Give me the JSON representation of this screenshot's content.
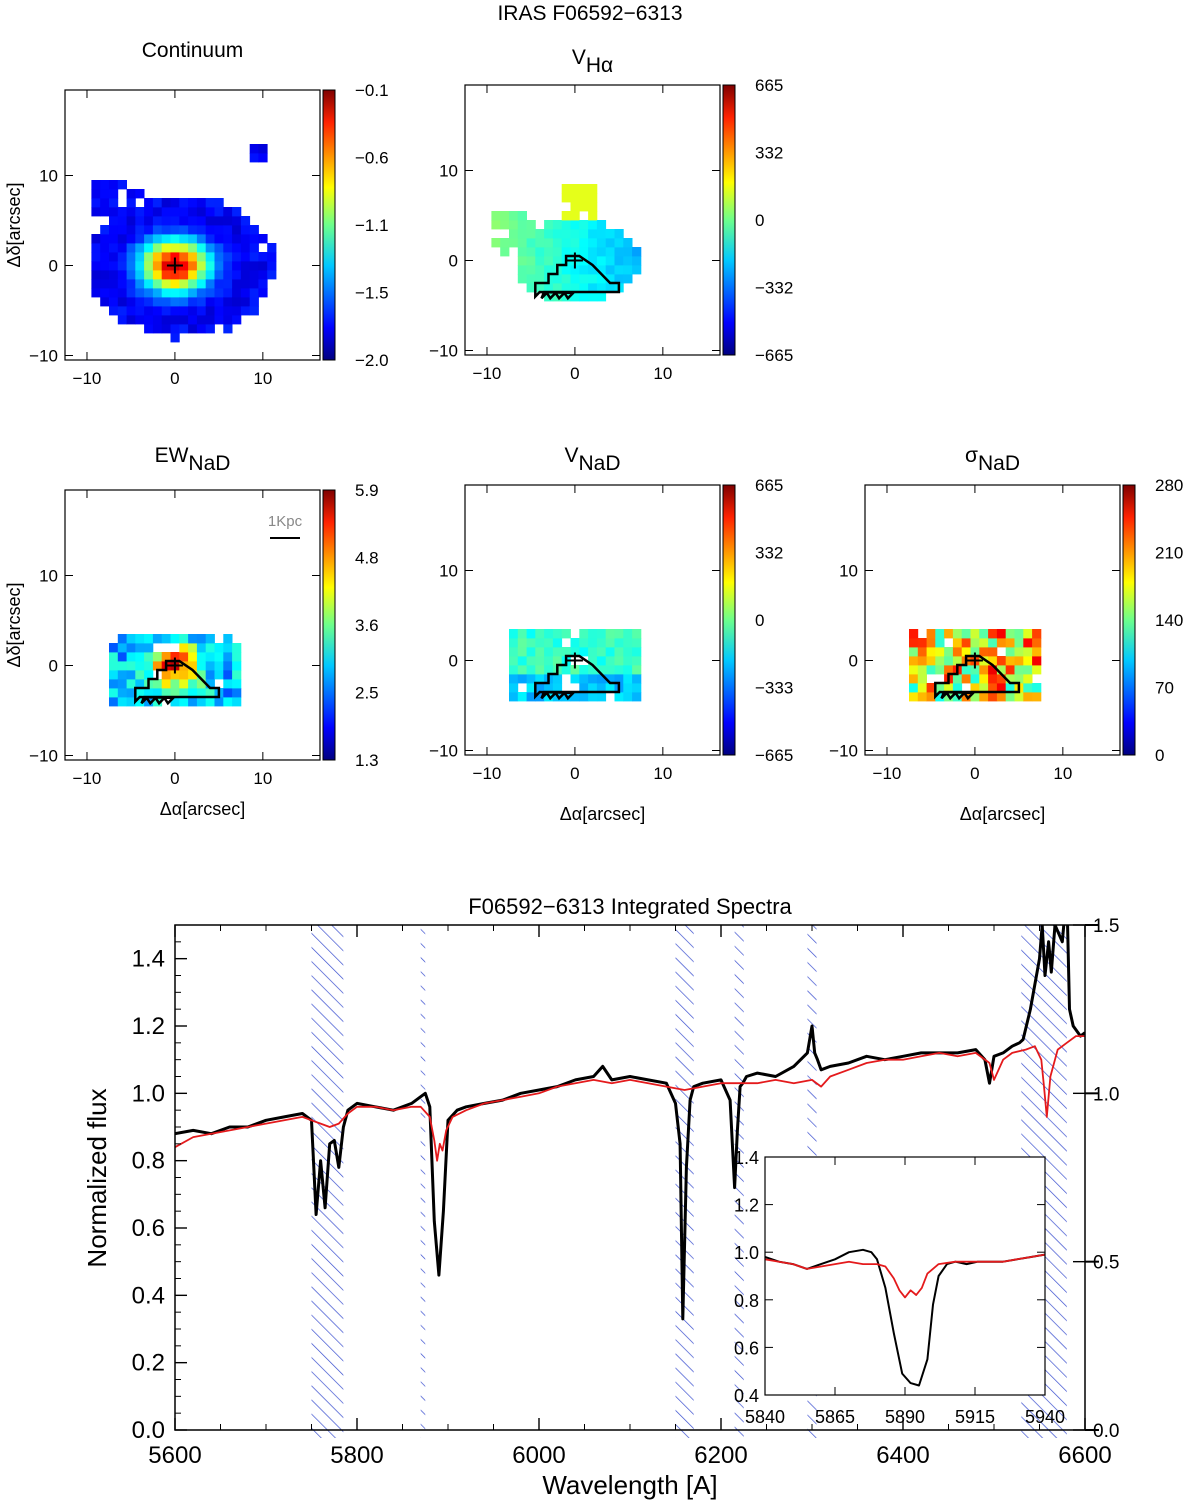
{
  "figure": {
    "title": "IRAS F06592−6313"
  },
  "colors": {
    "observed_line": "#000000",
    "model_line": "#e41a1c",
    "hatch": "#3a4fcf",
    "contour": "#000000",
    "colormap": "jet"
  },
  "maps": [
    {
      "key": "continuum",
      "title_main": "Continuum",
      "title_sub": "",
      "cbar_ticks": [
        "−0.1",
        "−0.6",
        "−1.1",
        "−1.5",
        "−2.0"
      ],
      "xticks": [
        "−10",
        "0",
        "10"
      ],
      "yticks": [
        "10",
        "0",
        "−10"
      ],
      "ylabel": "Δδ[arcsec]",
      "xlabel": "",
      "has_contour": false,
      "has_scalebar": false
    },
    {
      "key": "v_halpha",
      "title_main": "V",
      "title_sub": "Hα",
      "cbar_ticks": [
        "665",
        "332",
        "0",
        "−332",
        "−665"
      ],
      "xticks": [
        "−10",
        "0",
        "10"
      ],
      "yticks": [
        "10",
        "0",
        "−10"
      ],
      "ylabel": "",
      "xlabel": "",
      "has_contour": true,
      "has_scalebar": false
    },
    {
      "key": "ew_nad",
      "title_main": "EW",
      "title_sub": "NaD",
      "cbar_ticks": [
        "5.9",
        "4.8",
        "3.6",
        "2.5",
        "1.3"
      ],
      "xticks": [
        "−10",
        "0",
        "10"
      ],
      "yticks": [
        "10",
        "0",
        "−10"
      ],
      "ylabel": "Δδ[arcsec]",
      "xlabel": "Δα[arcsec]",
      "has_contour": true,
      "has_scalebar": true,
      "scalebar_label": "1Kpc"
    },
    {
      "key": "v_nad",
      "title_main": "V",
      "title_sub": "NaD",
      "cbar_ticks": [
        "665",
        "332",
        "0",
        "−333",
        "−665"
      ],
      "xticks": [
        "−10",
        "0",
        "10"
      ],
      "yticks": [
        "10",
        "0",
        "−10"
      ],
      "ylabel": "",
      "xlabel": "Δα[arcsec]",
      "has_contour": true,
      "has_scalebar": false
    },
    {
      "key": "sigma_nad",
      "title_main": "σ",
      "title_sub": "NaD",
      "cbar_ticks": [
        "280",
        "210",
        "140",
        "70",
        "0"
      ],
      "xticks": [
        "−10",
        "0",
        "10"
      ],
      "yticks": [
        "10",
        "0",
        "−10"
      ],
      "ylabel": "",
      "xlabel": "Δα[arcsec]",
      "has_contour": true,
      "has_scalebar": false
    }
  ],
  "chart_data": [
    {
      "type": "line",
      "title": "F06592−6313 Integrated Spectra",
      "xlabel": "Wavelength [A]",
      "ylabel": "Normalized flux",
      "xlim": [
        5600,
        6600
      ],
      "ylim": [
        0.0,
        1.5
      ],
      "right_ylim": [
        0.0,
        1.5
      ],
      "x_ticks": [
        "5600",
        "5800",
        "6000",
        "6200",
        "6400",
        "6600"
      ],
      "y_ticks": [
        "0.0",
        "0.2",
        "0.4",
        "0.6",
        "0.8",
        "1.0",
        "1.2",
        "1.4"
      ],
      "right_y_ticks": [
        "0.0",
        "0.5",
        "1.0",
        "1.5"
      ],
      "masked_regions": [
        [
          5750,
          5785
        ],
        [
          5870,
          5875
        ],
        [
          6150,
          6170
        ],
        [
          6215,
          6225
        ],
        [
          6295,
          6305
        ],
        [
          6530,
          6580
        ]
      ],
      "series": [
        {
          "x": [
            5600,
            5620,
            5640,
            5660,
            5680,
            5700,
            5720,
            5740,
            5750,
            5755,
            5760,
            5765,
            5770,
            5775,
            5780,
            5785,
            5790,
            5800,
            5820,
            5840,
            5860,
            5870,
            5875,
            5880,
            5885,
            5890,
            5895,
            5900,
            5910,
            5920,
            5940,
            5960,
            5980,
            6000,
            6020,
            6040,
            6060,
            6070,
            6080,
            6100,
            6120,
            6140,
            6150,
            6155,
            6158,
            6162,
            6166,
            6170,
            6180,
            6200,
            6210,
            6215,
            6218,
            6221,
            6224,
            6228,
            6240,
            6260,
            6280,
            6295,
            6300,
            6303,
            6306,
            6310,
            6320,
            6340,
            6360,
            6380,
            6400,
            6420,
            6440,
            6460,
            6480,
            6490,
            6495,
            6500,
            6510,
            6520,
            6528,
            6532,
            6540,
            6550,
            6553,
            6556,
            6560,
            6563,
            6567,
            6575,
            6580,
            6583,
            6587,
            6595,
            6600
          ],
          "y": [
            0.88,
            0.89,
            0.88,
            0.9,
            0.9,
            0.92,
            0.93,
            0.94,
            0.92,
            0.64,
            0.8,
            0.66,
            0.85,
            0.86,
            0.78,
            0.9,
            0.95,
            0.97,
            0.96,
            0.95,
            0.97,
            0.99,
            1.0,
            0.96,
            0.62,
            0.46,
            0.65,
            0.92,
            0.95,
            0.96,
            0.97,
            0.98,
            1.0,
            1.01,
            1.02,
            1.04,
            1.05,
            1.08,
            1.04,
            1.05,
            1.04,
            1.03,
            0.97,
            0.85,
            0.33,
            0.78,
            0.98,
            1.02,
            1.03,
            1.04,
            0.98,
            0.72,
            0.89,
            1.02,
            1.03,
            1.05,
            1.06,
            1.05,
            1.08,
            1.12,
            1.2,
            1.12,
            1.1,
            1.07,
            1.08,
            1.09,
            1.11,
            1.1,
            1.11,
            1.12,
            1.12,
            1.12,
            1.13,
            1.1,
            1.03,
            1.11,
            1.12,
            1.14,
            1.15,
            1.16,
            1.25,
            1.4,
            1.5,
            1.35,
            1.45,
            1.36,
            1.5,
            1.45,
            1.6,
            1.25,
            1.2,
            1.17,
            1.18
          ]
        },
        {
          "x": [
            5600,
            5620,
            5640,
            5660,
            5680,
            5700,
            5720,
            5740,
            5750,
            5760,
            5770,
            5780,
            5790,
            5800,
            5820,
            5840,
            5860,
            5870,
            5880,
            5885,
            5888,
            5891,
            5894,
            5898,
            5905,
            5920,
            5940,
            5960,
            5980,
            6000,
            6020,
            6040,
            6060,
            6080,
            6100,
            6120,
            6140,
            6160,
            6180,
            6200,
            6220,
            6240,
            6260,
            6280,
            6300,
            6310,
            6320,
            6340,
            6360,
            6380,
            6400,
            6420,
            6440,
            6460,
            6480,
            6495,
            6500,
            6510,
            6520,
            6535,
            6545,
            6552,
            6555,
            6558,
            6562,
            6570,
            6580,
            6590,
            6600
          ],
          "y": [
            0.84,
            0.87,
            0.88,
            0.89,
            0.9,
            0.91,
            0.92,
            0.93,
            0.92,
            0.91,
            0.9,
            0.91,
            0.94,
            0.96,
            0.96,
            0.95,
            0.96,
            0.96,
            0.93,
            0.86,
            0.8,
            0.85,
            0.83,
            0.89,
            0.93,
            0.95,
            0.97,
            0.98,
            0.99,
            1.0,
            1.02,
            1.03,
            1.04,
            1.03,
            1.04,
            1.03,
            1.02,
            1.01,
            1.02,
            1.03,
            1.03,
            1.03,
            1.04,
            1.03,
            1.04,
            1.02,
            1.05,
            1.07,
            1.09,
            1.1,
            1.1,
            1.11,
            1.12,
            1.11,
            1.12,
            1.09,
            1.04,
            1.1,
            1.12,
            1.13,
            1.14,
            1.1,
            1.02,
            0.93,
            1.05,
            1.13,
            1.15,
            1.17,
            1.17
          ]
        }
      ]
    },
    {
      "type": "line",
      "title": "",
      "xlim": [
        5840,
        5940
      ],
      "ylim": [
        0.4,
        1.4
      ],
      "x_ticks": [
        "5840",
        "5865",
        "5890",
        "5915",
        "5940"
      ],
      "y_ticks": [
        "0.4",
        "0.6",
        "0.8",
        "1.0",
        "1.2",
        "1.4"
      ],
      "series": [
        {
          "x": [
            5840,
            5845,
            5850,
            5855,
            5860,
            5865,
            5870,
            5875,
            5878,
            5880,
            5883,
            5886,
            5889,
            5892,
            5895,
            5898,
            5900,
            5902,
            5905,
            5908,
            5912,
            5916,
            5920,
            5925,
            5930,
            5935,
            5940
          ],
          "y": [
            0.98,
            0.96,
            0.95,
            0.93,
            0.95,
            0.97,
            1.0,
            1.01,
            1.0,
            0.97,
            0.85,
            0.66,
            0.49,
            0.45,
            0.44,
            0.55,
            0.78,
            0.9,
            0.95,
            0.96,
            0.95,
            0.96,
            0.96,
            0.96,
            0.97,
            0.98,
            0.99
          ]
        },
        {
          "x": [
            5840,
            5845,
            5850,
            5855,
            5860,
            5865,
            5870,
            5875,
            5880,
            5883,
            5886,
            5888,
            5890,
            5892,
            5894,
            5896,
            5898,
            5902,
            5908,
            5915,
            5920,
            5925,
            5930,
            5935,
            5940
          ],
          "y": [
            0.97,
            0.96,
            0.95,
            0.93,
            0.94,
            0.95,
            0.96,
            0.95,
            0.95,
            0.94,
            0.89,
            0.84,
            0.81,
            0.84,
            0.82,
            0.85,
            0.91,
            0.95,
            0.96,
            0.96,
            0.96,
            0.96,
            0.97,
            0.98,
            0.99
          ]
        }
      ]
    }
  ]
}
